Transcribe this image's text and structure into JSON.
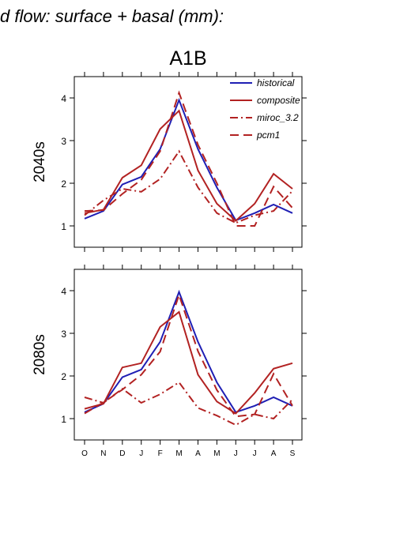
{
  "figure": {
    "heading": "d flow: surface + basal (mm):",
    "scenario": "A1B"
  },
  "colors": {
    "historical": "#1f1fb4",
    "composite": "#b22222",
    "miroc_3.2": "#b22222",
    "pcm1": "#b22222"
  },
  "chart_data": [
    {
      "type": "line",
      "panel": "2040s",
      "ylabel": "2040s",
      "xlabel": "",
      "categories": [
        "O",
        "N",
        "D",
        "J",
        "F",
        "M",
        "A",
        "M",
        "J",
        "J",
        "A",
        "S"
      ],
      "ylim": [
        0.5,
        4.5
      ],
      "yticks": [
        1,
        2,
        3,
        4
      ],
      "legend": {
        "position": "top-right",
        "entries": [
          "historical",
          "composite",
          "miroc_3.2",
          "pcm1"
        ]
      },
      "series": [
        {
          "name": "historical",
          "style": "solid",
          "color": "#1f1fb4",
          "values": [
            1.17,
            1.35,
            1.97,
            2.15,
            2.8,
            3.95,
            2.8,
            1.9,
            1.13,
            1.3,
            1.5,
            1.3
          ]
        },
        {
          "name": "composite",
          "style": "solid",
          "color": "#b22222",
          "values": [
            1.3,
            1.38,
            2.13,
            2.42,
            3.27,
            3.7,
            2.3,
            1.52,
            1.12,
            1.52,
            2.22,
            1.87
          ]
        },
        {
          "name": "miroc_3.2",
          "style": "dashdot",
          "color": "#b22222",
          "values": [
            1.25,
            1.6,
            1.87,
            1.8,
            2.1,
            2.75,
            1.9,
            1.3,
            1.07,
            1.25,
            1.35,
            1.82
          ]
        },
        {
          "name": "pcm1",
          "style": "dashed",
          "color": "#b22222",
          "values": [
            1.35,
            1.37,
            1.75,
            2.08,
            2.75,
            4.12,
            2.9,
            2.0,
            1.0,
            1.0,
            1.92,
            1.42
          ]
        }
      ]
    },
    {
      "type": "line",
      "panel": "2080s",
      "ylabel": "2080s",
      "xlabel": "",
      "categories": [
        "O",
        "N",
        "D",
        "J",
        "F",
        "M",
        "A",
        "M",
        "J",
        "J",
        "A",
        "S"
      ],
      "ylim": [
        0.5,
        4.5
      ],
      "yticks": [
        1,
        2,
        3,
        4
      ],
      "series": [
        {
          "name": "historical",
          "style": "solid",
          "color": "#1f1fb4",
          "values": [
            1.15,
            1.35,
            1.97,
            2.15,
            2.8,
            3.97,
            2.8,
            1.85,
            1.15,
            1.3,
            1.5,
            1.3
          ]
        },
        {
          "name": "composite",
          "style": "solid",
          "color": "#b22222",
          "values": [
            1.23,
            1.35,
            2.2,
            2.3,
            3.15,
            3.5,
            2.03,
            1.4,
            1.12,
            1.6,
            2.17,
            2.3
          ]
        },
        {
          "name": "miroc_3.2",
          "style": "dashdot",
          "color": "#b22222",
          "values": [
            1.5,
            1.37,
            1.7,
            1.37,
            1.57,
            1.85,
            1.25,
            1.07,
            0.85,
            1.1,
            1.0,
            1.45
          ]
        },
        {
          "name": "pcm1",
          "style": "dashed",
          "color": "#b22222",
          "values": [
            1.12,
            1.38,
            1.68,
            2.03,
            2.57,
            3.9,
            2.58,
            1.67,
            1.05,
            1.1,
            2.05,
            1.3
          ]
        }
      ]
    }
  ]
}
